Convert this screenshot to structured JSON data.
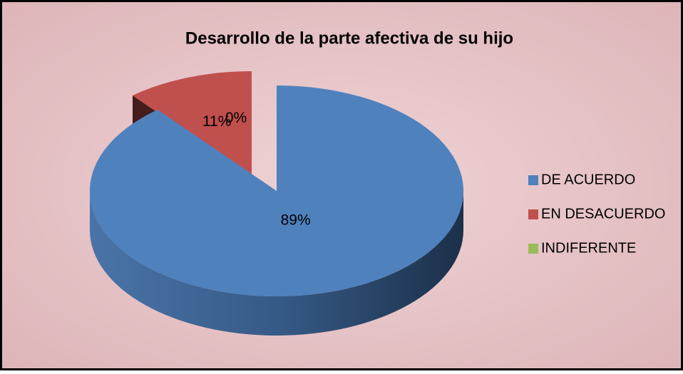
{
  "chart_data": {
    "type": "pie",
    "title": "Desarrollo de la parte afectiva de su hijo",
    "categories": [
      "DE ACUERDO",
      "EN DESACUERDO",
      "INDIFERENTE"
    ],
    "values": [
      89,
      11,
      0
    ],
    "value_labels": [
      "89%",
      "11%",
      "0%"
    ],
    "colors": [
      "#4f81bd",
      "#c0504d",
      "#9bbb59"
    ],
    "legend": "right"
  }
}
